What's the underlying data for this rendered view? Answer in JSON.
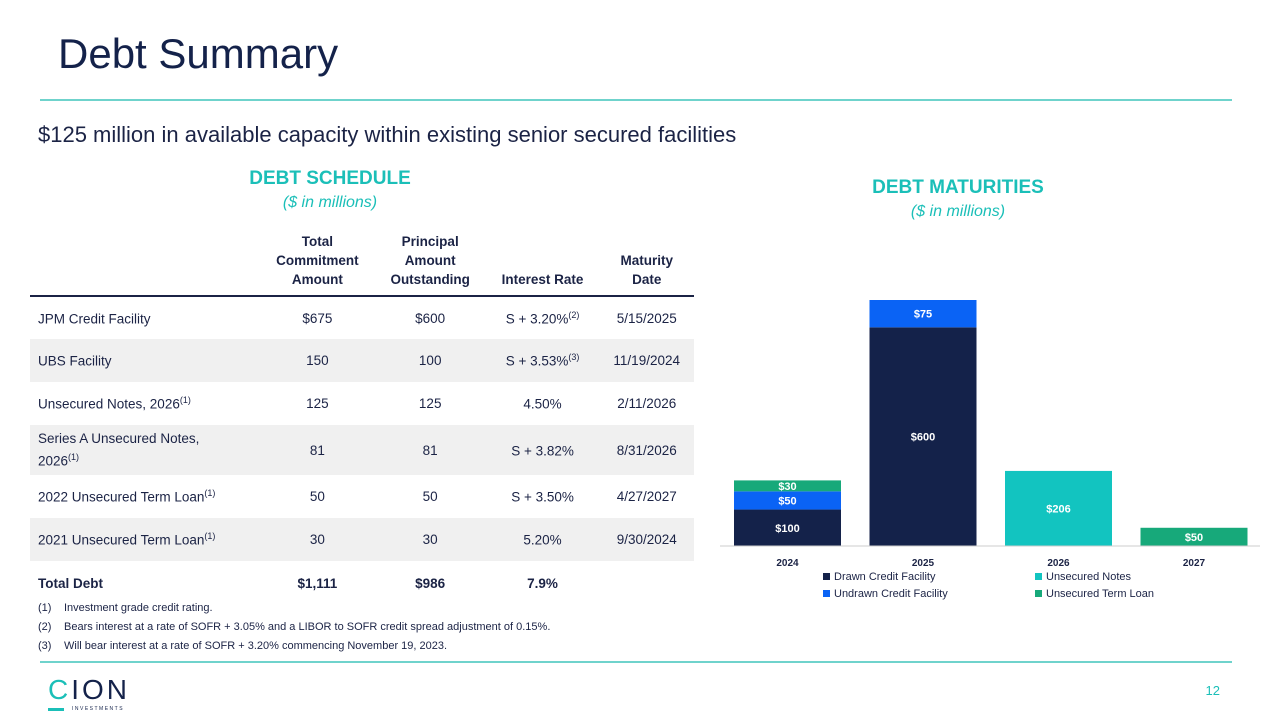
{
  "title": "Debt Summary",
  "subtitle": "$125 million in available capacity within existing senior secured facilities",
  "schedule": {
    "heading": "DEBT SCHEDULE",
    "unit": "($ in millions)",
    "columns": [
      "",
      "Total Commitment Amount",
      "Principal Amount Outstanding",
      "Interest Rate",
      "Maturity Date"
    ],
    "rows": [
      {
        "name": "JPM Credit Facility",
        "sup": "",
        "total": "$675",
        "principal": "$600",
        "rate": "S + 3.20%",
        "rate_sup": "(2)",
        "maturity": "5/15/2025"
      },
      {
        "name": "UBS Facility",
        "sup": "",
        "total": "150",
        "principal": "100",
        "rate": "S + 3.53%",
        "rate_sup": "(3)",
        "maturity": "11/19/2024"
      },
      {
        "name": "Unsecured Notes, 2026",
        "sup": "(1)",
        "total": "125",
        "principal": "125",
        "rate": "4.50%",
        "rate_sup": "",
        "maturity": "2/11/2026"
      },
      {
        "name": "Series A Unsecured Notes, 2026",
        "sup": "(1)",
        "total": "81",
        "principal": "81",
        "rate": "S + 3.82%",
        "rate_sup": "",
        "maturity": "8/31/2026"
      },
      {
        "name": "2022 Unsecured Term Loan",
        "sup": "(1)",
        "total": "50",
        "principal": "50",
        "rate": "S + 3.50%",
        "rate_sup": "",
        "maturity": "4/27/2027"
      },
      {
        "name": "2021 Unsecured Term Loan",
        "sup": "(1)",
        "total": "30",
        "principal": "30",
        "rate": "5.20%",
        "rate_sup": "",
        "maturity": "9/30/2024"
      }
    ],
    "total": {
      "name": "Total Debt",
      "total": "$1,111",
      "principal": "$986",
      "rate": "7.9%",
      "maturity": ""
    }
  },
  "footnotes": [
    {
      "num": "(1)",
      "text": "Investment grade credit rating."
    },
    {
      "num": "(2)",
      "text": "Bears interest at a rate of SOFR + 3.05% and a LIBOR to SOFR credit spread adjustment of 0.15%."
    },
    {
      "num": "(3)",
      "text": "Will bear interest at a rate of SOFR + 3.20% commencing November 19, 2023."
    }
  ],
  "logo": {
    "name": "CION",
    "tagline": "INVESTMENTS"
  },
  "page_number": "12",
  "chart_data": {
    "type": "bar",
    "stacked": true,
    "title": "DEBT MATURITIES",
    "subtitle": "($ in millions)",
    "categories": [
      "2024",
      "2025",
      "2026",
      "2027"
    ],
    "legend_position": "bottom",
    "grid": false,
    "series": [
      {
        "name": "Drawn Credit Facility",
        "color": "#14224a",
        "values": [
          100,
          600,
          0,
          0
        ]
      },
      {
        "name": "Undrawn Credit Facility",
        "color": "#0a63f5",
        "values": [
          50,
          75,
          0,
          0
        ]
      },
      {
        "name": "Unsecured Notes",
        "color": "#12c4c0",
        "values": [
          0,
          0,
          206,
          0
        ]
      },
      {
        "name": "Unsecured Term Loan",
        "color": "#17a97a",
        "values": [
          30,
          0,
          0,
          50
        ]
      }
    ]
  }
}
